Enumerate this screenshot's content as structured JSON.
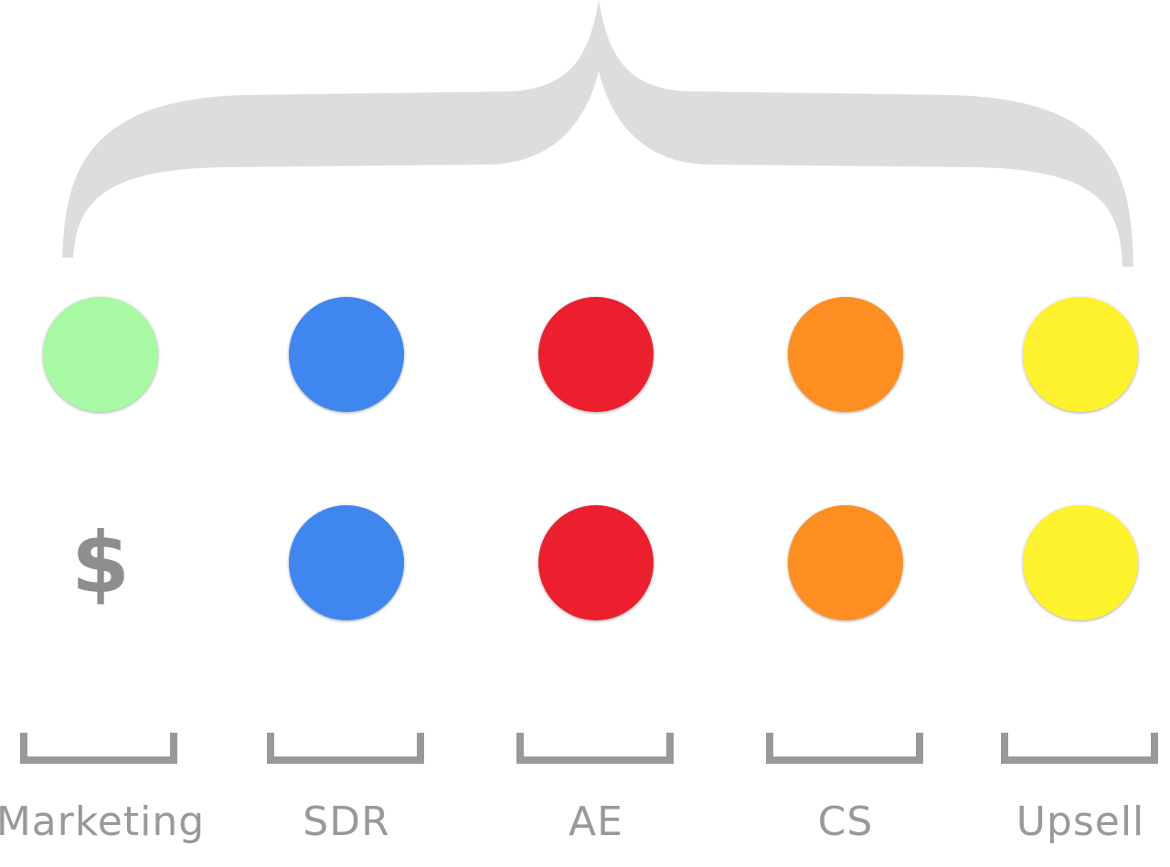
{
  "stages": [
    {
      "key": "marketing",
      "label": "Marketing",
      "color": "#a8f9a3",
      "row2": "$",
      "row2_color": "#8e8e8e"
    },
    {
      "key": "sdr",
      "label": "SDR",
      "color": "#4086ef",
      "row2_color": "#4086ef"
    },
    {
      "key": "ae",
      "label": "AE",
      "color": "#ec1f2e",
      "row2_color": "#ec1f2e"
    },
    {
      "key": "cs",
      "label": "CS",
      "color": "#fd8f22",
      "row2_color": "#fd8f22"
    },
    {
      "key": "upsell",
      "label": "Upsell",
      "color": "#fef22f",
      "row2_color": "#fef22f"
    }
  ],
  "brace_color": "#dcdddf",
  "bracket_color": "#999999"
}
